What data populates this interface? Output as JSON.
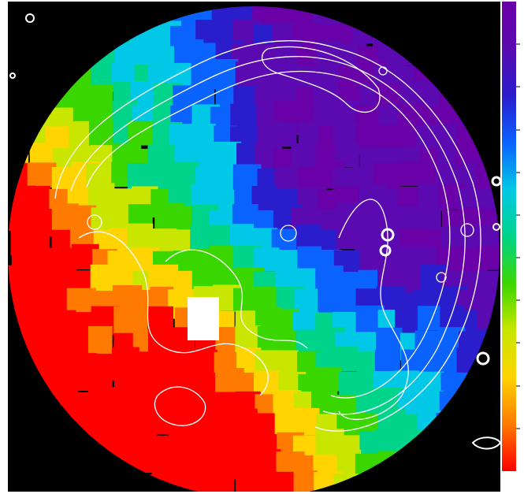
{
  "figure": {
    "description_kind": "voronoi-binned map with overlaid intensity contours",
    "colormap": [
      "#ff0000",
      "#ff7a00",
      "#ffd400",
      "#c8e600",
      "#3ad600",
      "#00d48a",
      "#00c8e6",
      "#0a62ff",
      "#2a1dcc",
      "#5a0ab0",
      "#6a00a8"
    ],
    "colorbar_tick_count": 10,
    "contour_color": "#ffffff",
    "background_color": "#000000"
  }
}
